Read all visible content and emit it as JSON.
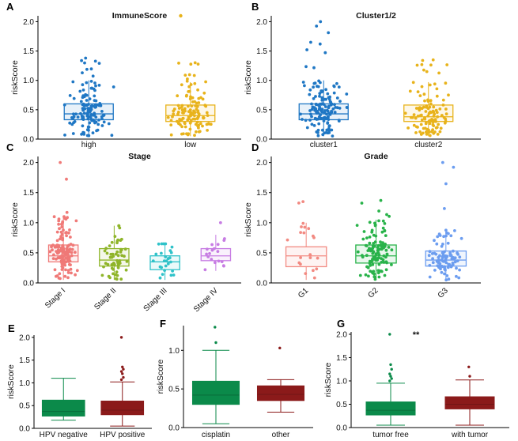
{
  "chart_data": [
    {
      "panel": "A",
      "type": "box-jitter",
      "title": "ImmuneScore",
      "legend_marker": "low",
      "ylabel": "riskScore",
      "ylim": [
        0,
        2.1
      ],
      "yticks": [
        0.0,
        0.5,
        1.0,
        1.5,
        2.0
      ],
      "tick_decimals": 1,
      "categories": [
        "high",
        "low"
      ],
      "colors": [
        "#1f77c4",
        "#e8b31b"
      ],
      "n": [
        130,
        120
      ],
      "box": [
        {
          "q1": 0.33,
          "median": 0.43,
          "q3": 0.6,
          "wlow": 0.05,
          "whigh": 1.0,
          "max": 1.38
        },
        {
          "q1": 0.3,
          "median": 0.4,
          "q3": 0.58,
          "wlow": 0.05,
          "whigh": 0.97,
          "max": 1.3
        }
      ]
    },
    {
      "panel": "B",
      "type": "box-jitter",
      "title": "Cluster1/2",
      "ylabel": "riskScore",
      "ylim": [
        0,
        2.1
      ],
      "yticks": [
        0.0,
        0.5,
        1.0,
        1.5,
        2.0
      ],
      "tick_decimals": 1,
      "categories": [
        "cluster1",
        "cluster2"
      ],
      "colors": [
        "#1f77c4",
        "#e8b31b"
      ],
      "n": [
        140,
        115
      ],
      "box": [
        {
          "q1": 0.33,
          "median": 0.43,
          "q3": 0.6,
          "wlow": 0.05,
          "whigh": 1.0,
          "max": 2.0
        },
        {
          "q1": 0.3,
          "median": 0.38,
          "q3": 0.58,
          "wlow": 0.05,
          "whigh": 0.97,
          "max": 1.35
        }
      ]
    },
    {
      "panel": "C",
      "type": "box-jitter",
      "title": "Stage",
      "ylabel": "riskScore",
      "ylim": [
        0,
        2.1
      ],
      "yticks": [
        0.0,
        0.5,
        1.0,
        1.5,
        2.0
      ],
      "tick_decimals": 1,
      "categories": [
        "Stage I",
        "Stage II",
        "Stage III",
        "Stage IV"
      ],
      "rotate_labels": true,
      "colors": [
        "#f07a78",
        "#8fb52a",
        "#2fc2c9",
        "#c77ce3"
      ],
      "n": [
        130,
        55,
        25,
        18
      ],
      "box": [
        {
          "q1": 0.35,
          "median": 0.45,
          "q3": 0.63,
          "wlow": 0.05,
          "whigh": 1.1,
          "max": 2.0
        },
        {
          "q1": 0.28,
          "median": 0.38,
          "q3": 0.57,
          "wlow": 0.05,
          "whigh": 0.95,
          "max": 0.95
        },
        {
          "q1": 0.22,
          "median": 0.35,
          "q3": 0.45,
          "wlow": 0.05,
          "whigh": 0.65,
          "max": 0.65
        },
        {
          "q1": 0.37,
          "median": 0.45,
          "q3": 0.57,
          "wlow": 0.2,
          "whigh": 0.8,
          "max": 1.0
        }
      ]
    },
    {
      "panel": "D",
      "type": "box-jitter",
      "title": "Grade",
      "ylabel": "riskScore",
      "ylim": [
        0,
        2.1
      ],
      "yticks": [
        0.0,
        0.5,
        1.0,
        1.5,
        2.0
      ],
      "tick_decimals": 1,
      "categories": [
        "G1",
        "G2",
        "G3"
      ],
      "rotate_labels": true,
      "colors": [
        "#f28a82",
        "#29b34a",
        "#6c9df0"
      ],
      "n": [
        20,
        120,
        95
      ],
      "box": [
        {
          "q1": 0.27,
          "median": 0.45,
          "q3": 0.6,
          "wlow": 0.05,
          "whigh": 1.0,
          "max": 1.35
        },
        {
          "q1": 0.33,
          "median": 0.45,
          "q3": 0.63,
          "wlow": 0.05,
          "whigh": 1.05,
          "max": 1.37
        },
        {
          "q1": 0.28,
          "median": 0.38,
          "q3": 0.53,
          "wlow": 0.05,
          "whigh": 0.88,
          "max": 2.0
        }
      ]
    },
    {
      "panel": "E",
      "type": "box",
      "title": "",
      "ylabel": "riskScore",
      "ylim": [
        0,
        2.05
      ],
      "yticks": [
        0.0,
        0.5,
        1.0,
        1.5,
        2.0
      ],
      "tick_decimals": 1,
      "categories": [
        "HPV negative",
        "HPV positive"
      ],
      "colors": [
        "#0b8a4a",
        "#8b1a1a"
      ],
      "box": [
        {
          "q1": 0.27,
          "median": 0.37,
          "q3": 0.62,
          "wlow": 0.18,
          "whigh": 1.1
        },
        {
          "q1": 0.3,
          "median": 0.4,
          "q3": 0.6,
          "wlow": 0.05,
          "whigh": 1.02
        }
      ],
      "outliers": [
        [],
        [
          2.0,
          1.35,
          1.3,
          1.25,
          1.2,
          1.12,
          1.07
        ]
      ]
    },
    {
      "panel": "F",
      "type": "box",
      "title": "",
      "ylabel": "riskScore",
      "ylim": [
        0,
        1.32
      ],
      "yticks": [
        0.0,
        0.5,
        1.0
      ],
      "tick_decimals": 1,
      "categories": [
        "cisplatin",
        "other"
      ],
      "colors": [
        "#0b8a4a",
        "#8b1a1a"
      ],
      "box": [
        {
          "q1": 0.3,
          "median": 0.42,
          "q3": 0.6,
          "wlow": 0.05,
          "whigh": 1.0
        },
        {
          "q1": 0.35,
          "median": 0.43,
          "q3": 0.54,
          "wlow": 0.2,
          "whigh": 0.62
        }
      ],
      "outliers": [
        [
          1.3,
          1.1
        ],
        [
          1.03
        ]
      ]
    },
    {
      "panel": "G",
      "type": "box",
      "title": "",
      "annotation": "**",
      "ylabel": "riskScore",
      "ylim": [
        0,
        2.05
      ],
      "yticks": [
        0.0,
        0.5,
        1.0,
        1.5,
        2.0
      ],
      "tick_decimals": 1,
      "categories": [
        "tumor free",
        "with tumor"
      ],
      "colors": [
        "#0b8a4a",
        "#8b1a1a"
      ],
      "box": [
        {
          "q1": 0.27,
          "median": 0.37,
          "q3": 0.55,
          "wlow": 0.05,
          "whigh": 0.95
        },
        {
          "q1": 0.4,
          "median": 0.5,
          "q3": 0.66,
          "wlow": 0.05,
          "whigh": 1.02
        }
      ],
      "outliers": [
        [
          2.0,
          1.35,
          1.25,
          1.15,
          1.1,
          1.05,
          1.0
        ],
        [
          1.3,
          1.1
        ]
      ]
    }
  ]
}
